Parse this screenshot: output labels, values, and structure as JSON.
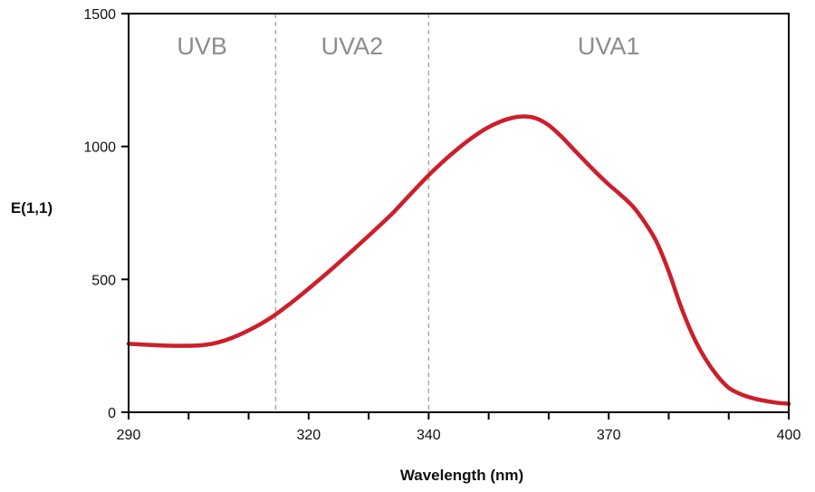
{
  "chart_data": {
    "type": "line",
    "xlabel": "Wavelength (nm)",
    "ylabel": "E(1,1)",
    "xlim": [
      290,
      400
    ],
    "ylim": [
      0,
      1500
    ],
    "x_ticks": [
      290,
      320,
      340,
      370,
      400
    ],
    "x_minor_ticks": [
      300,
      310,
      330,
      350,
      360,
      380,
      390
    ],
    "y_ticks": [
      0,
      500,
      1000,
      1500
    ],
    "grid": false,
    "legend": "none",
    "colors": {
      "line": "#cc1f2b",
      "axis": "#000000",
      "region_divider": "#aaaaaa",
      "region_text": "#8c8c8c"
    },
    "regions": [
      {
        "label": "UVB",
        "x_start": 290,
        "x_end": 314.5
      },
      {
        "label": "UVA2",
        "x_start": 314.5,
        "x_end": 340
      },
      {
        "label": "UVA1",
        "x_start": 340,
        "x_end": 400
      }
    ],
    "dividers": [
      314.5,
      340
    ],
    "series": [
      {
        "x": [
          290,
          293,
          296,
          299,
          302,
          304,
          306,
          308,
          310,
          312,
          314,
          316,
          318,
          320,
          322,
          324,
          326,
          328,
          330,
          332,
          334,
          336,
          338,
          340,
          342,
          344,
          346,
          348,
          350,
          352,
          354,
          356,
          358,
          360,
          362,
          364,
          366,
          368,
          370,
          372,
          374,
          376,
          378,
          380,
          382,
          384,
          386,
          388,
          390,
          392,
          394,
          396,
          398,
          400
        ],
        "values": [
          258,
          254,
          251,
          250,
          252,
          258,
          270,
          287,
          308,
          332,
          360,
          393,
          428,
          465,
          503,
          542,
          582,
          623,
          664,
          706,
          749,
          797,
          845,
          892,
          935,
          975,
          1012,
          1045,
          1073,
          1094,
          1108,
          1113,
          1105,
          1080,
          1040,
          993,
          946,
          900,
          857,
          818,
          775,
          715,
          640,
          530,
          400,
          290,
          205,
          140,
          92,
          68,
          53,
          43,
          36,
          32
        ]
      }
    ]
  }
}
